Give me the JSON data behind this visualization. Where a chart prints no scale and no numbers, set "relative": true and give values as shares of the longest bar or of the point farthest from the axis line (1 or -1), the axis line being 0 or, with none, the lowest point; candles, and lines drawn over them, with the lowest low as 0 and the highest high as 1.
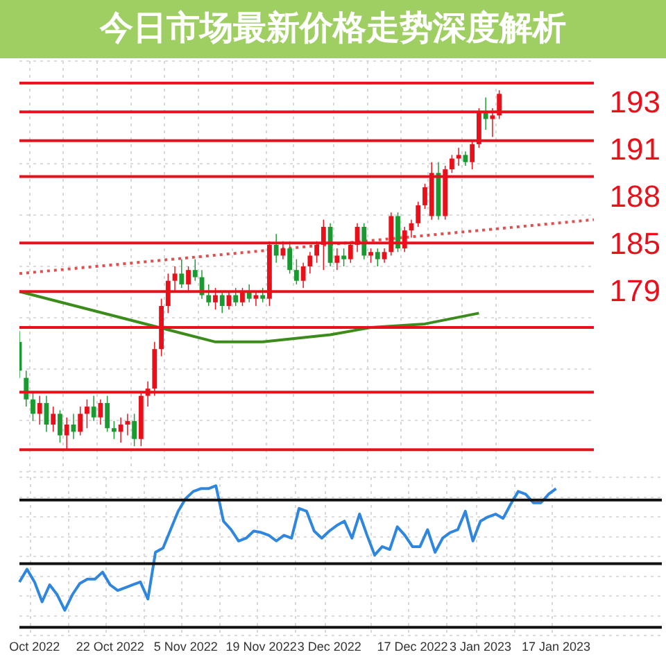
{
  "chart_data": [
    {
      "type": "candlestick",
      "title": "今日市场最新价格走势深度解析",
      "relative": true,
      "grid": true,
      "tick_labels": false,
      "categories": [
        null,
        null,
        null,
        null,
        null,
        null,
        null,
        null,
        null,
        null,
        null,
        null,
        null,
        null,
        null,
        null,
        null,
        null,
        null,
        null,
        null,
        null,
        null,
        null,
        null,
        null,
        null,
        null,
        null,
        null,
        null,
        null,
        null,
        null,
        null,
        null,
        null,
        null,
        null,
        null,
        null,
        null,
        null,
        null,
        null,
        null,
        null,
        null,
        null,
        null,
        null,
        null,
        null,
        null,
        null,
        null,
        null,
        null,
        null,
        null,
        null,
        null,
        null,
        null,
        null,
        null,
        null,
        null,
        null,
        null,
        null,
        null,
        null,
        null,
        null,
        null,
        null,
        null,
        null,
        null,
        null,
        null,
        null,
        null,
        null,
        null
      ],
      "ohlc": [
        [
          0.3,
          0.33,
          0.2,
          0.22
        ],
        [
          0.2,
          0.22,
          0.12,
          0.14
        ],
        [
          0.14,
          0.16,
          0.08,
          0.1
        ],
        [
          0.1,
          0.15,
          0.07,
          0.13
        ],
        [
          0.13,
          0.15,
          0.05,
          0.07
        ],
        [
          0.07,
          0.12,
          0.05,
          0.1
        ],
        [
          0.1,
          0.11,
          0.02,
          0.04
        ],
        [
          0.04,
          0.09,
          0.0,
          0.07
        ],
        [
          0.07,
          0.1,
          0.03,
          0.05
        ],
        [
          0.05,
          0.12,
          0.04,
          0.1
        ],
        [
          0.1,
          0.14,
          0.06,
          0.12
        ],
        [
          0.12,
          0.15,
          0.08,
          0.09
        ],
        [
          0.09,
          0.14,
          0.07,
          0.13
        ],
        [
          0.13,
          0.15,
          0.05,
          0.06
        ],
        [
          0.06,
          0.08,
          0.03,
          0.05
        ],
        [
          0.05,
          0.09,
          0.02,
          0.07
        ],
        [
          0.07,
          0.1,
          0.04,
          0.08
        ],
        [
          0.08,
          0.1,
          0.01,
          0.03
        ],
        [
          0.03,
          0.16,
          0.01,
          0.15
        ],
        [
          0.15,
          0.19,
          0.12,
          0.17
        ],
        [
          0.17,
          0.3,
          0.15,
          0.28
        ],
        [
          0.28,
          0.42,
          0.26,
          0.4
        ],
        [
          0.4,
          0.49,
          0.38,
          0.47
        ],
        [
          0.47,
          0.51,
          0.44,
          0.49
        ],
        [
          0.49,
          0.53,
          0.45,
          0.46
        ],
        [
          0.46,
          0.51,
          0.44,
          0.5
        ],
        [
          0.5,
          0.53,
          0.47,
          0.48
        ],
        [
          0.48,
          0.5,
          0.42,
          0.43
        ],
        [
          0.43,
          0.46,
          0.4,
          0.41
        ],
        [
          0.41,
          0.45,
          0.39,
          0.43
        ],
        [
          0.43,
          0.44,
          0.38,
          0.4
        ],
        [
          0.4,
          0.44,
          0.39,
          0.43
        ],
        [
          0.43,
          0.45,
          0.4,
          0.41
        ],
        [
          0.41,
          0.45,
          0.4,
          0.44
        ],
        [
          0.44,
          0.46,
          0.41,
          0.42
        ],
        [
          0.42,
          0.44,
          0.4,
          0.43
        ],
        [
          0.43,
          0.45,
          0.41,
          0.42
        ],
        [
          0.42,
          0.58,
          0.4,
          0.57
        ],
        [
          0.57,
          0.6,
          0.52,
          0.54
        ],
        [
          0.54,
          0.58,
          0.53,
          0.56
        ],
        [
          0.56,
          0.58,
          0.49,
          0.5
        ],
        [
          0.5,
          0.53,
          0.46,
          0.47
        ],
        [
          0.47,
          0.52,
          0.45,
          0.51
        ],
        [
          0.51,
          0.55,
          0.49,
          0.54
        ],
        [
          0.54,
          0.58,
          0.52,
          0.57
        ],
        [
          0.57,
          0.64,
          0.5,
          0.62
        ],
        [
          0.62,
          0.63,
          0.51,
          0.52
        ],
        [
          0.52,
          0.56,
          0.5,
          0.54
        ],
        [
          0.54,
          0.56,
          0.51,
          0.53
        ],
        [
          0.53,
          0.58,
          0.52,
          0.57
        ],
        [
          0.57,
          0.63,
          0.55,
          0.62
        ],
        [
          0.62,
          0.63,
          0.53,
          0.54
        ],
        [
          0.54,
          0.56,
          0.52,
          0.55
        ],
        [
          0.55,
          0.56,
          0.51,
          0.53
        ],
        [
          0.53,
          0.56,
          0.52,
          0.55
        ],
        [
          0.55,
          0.66,
          0.54,
          0.65
        ],
        [
          0.65,
          0.66,
          0.55,
          0.56
        ],
        [
          0.56,
          0.62,
          0.55,
          0.61
        ],
        [
          0.61,
          0.64,
          0.59,
          0.63
        ],
        [
          0.63,
          0.69,
          0.62,
          0.68
        ],
        [
          0.68,
          0.74,
          0.67,
          0.73
        ],
        [
          0.65,
          0.8,
          0.64,
          0.77
        ],
        [
          0.77,
          0.8,
          0.64,
          0.65
        ],
        [
          0.65,
          0.79,
          0.64,
          0.78
        ],
        [
          0.78,
          0.82,
          0.77,
          0.81
        ],
        [
          0.81,
          0.84,
          0.79,
          0.82
        ],
        [
          0.82,
          0.83,
          0.79,
          0.8
        ],
        [
          0.8,
          0.86,
          0.78,
          0.85
        ],
        [
          0.85,
          0.95,
          0.84,
          0.94
        ],
        [
          0.94,
          0.98,
          0.89,
          0.92
        ],
        [
          0.92,
          0.95,
          0.87,
          0.93
        ],
        [
          0.93,
          1.0,
          0.92,
          0.99
        ],
        null,
        null,
        null,
        null,
        null,
        null,
        null,
        null,
        null,
        null,
        null,
        null,
        null,
        null
      ],
      "colors": [
        "#1a9a30",
        "#1a9a30",
        "#1a9a30",
        "#e8101a",
        "#1a9a30",
        "#e8101a",
        "#1a9a30",
        "#e8101a",
        "#1a9a30",
        "#e8101a",
        "#e8101a",
        "#1a9a30",
        "#e8101a",
        "#1a9a30",
        "#1a9a30",
        "#e8101a",
        "#e8101a",
        "#1a9a30",
        "#e8101a",
        "#e8101a",
        "#e8101a",
        "#e8101a",
        "#e8101a",
        "#e8101a",
        "#1a9a30",
        "#e8101a",
        "#1a9a30",
        "#1a9a30",
        "#1a9a30",
        "#e8101a",
        "#1a9a30",
        "#e8101a",
        "#1a9a30",
        "#e8101a",
        "#1a9a30",
        "#e8101a",
        "#1a9a30",
        "#e8101a",
        "#1a9a30",
        "#e8101a",
        "#1a9a30",
        "#1a9a30",
        "#e8101a",
        "#e8101a",
        "#e8101a",
        "#e8101a",
        "#1a9a30",
        "#e8101a",
        "#1a9a30",
        "#e8101a",
        "#e8101a",
        "#1a9a30",
        "#e8101a",
        "#1a9a30",
        "#e8101a",
        "#e8101a",
        "#1a9a30",
        "#e8101a",
        "#e8101a",
        "#e8101a",
        "#e8101a",
        "#e8101a",
        "#1a9a30",
        "#e8101a",
        "#e8101a",
        "#e8101a",
        "#1a9a30",
        "#e8101a",
        "#e8101a",
        "#1a9a30",
        "#e8101a",
        "#e8101a",
        null,
        null,
        null,
        null,
        null,
        null,
        null,
        null,
        null,
        null,
        null,
        null,
        null,
        null
      ],
      "series": [
        {
          "type": "line",
          "color": "#3c8c1c",
          "marker": "none",
          "line_style": "solid",
          "values": [
            0.44,
            null,
            null,
            null,
            null,
            null,
            null,
            null,
            null,
            null,
            null,
            null,
            null,
            null,
            null,
            null,
            null,
            null,
            null,
            null,
            null,
            null,
            null,
            null,
            null,
            null,
            null,
            null,
            null,
            0.3,
            null,
            null,
            null,
            null,
            null,
            null,
            0.3,
            null,
            null,
            null,
            null,
            null,
            null,
            null,
            null,
            null,
            0.32,
            null,
            null,
            null,
            null,
            null,
            0.34,
            null,
            null,
            null,
            null,
            null,
            null,
            null,
            0.35,
            null,
            null,
            null,
            null,
            null,
            null,
            null,
            0.38,
            null,
            null,
            null,
            null,
            null,
            null,
            null,
            null,
            null,
            null,
            null,
            null,
            null,
            null,
            null,
            null,
            null
          ]
        },
        {
          "type": "line",
          "color": "#e05050",
          "marker": "none",
          "line_style": "dotted",
          "values": [
            0.49,
            null,
            null,
            null,
            null,
            null,
            null,
            null,
            null,
            null,
            null,
            null,
            null,
            null,
            null,
            null,
            null,
            null,
            null,
            null,
            null,
            null,
            null,
            null,
            null,
            null,
            null,
            null,
            null,
            null,
            null,
            null,
            null,
            null,
            null,
            null,
            null,
            null,
            null,
            null,
            null,
            null,
            null,
            null,
            null,
            null,
            null,
            null,
            null,
            null,
            null,
            null,
            null,
            null,
            null,
            null,
            null,
            null,
            null,
            null,
            null,
            null,
            null,
            null,
            null,
            null,
            null,
            null,
            null,
            null,
            null,
            null,
            null,
            null,
            null,
            null,
            null,
            null,
            null,
            null,
            null,
            null,
            null,
            null,
            null,
            0.64
          ]
        }
      ],
      "ref_lines": [
        {
          "axis": "y",
          "value": 1.02,
          "color": "#e8101a"
        },
        {
          "axis": "y",
          "value": 0.94,
          "color": "#e8101a"
        },
        {
          "axis": "y",
          "value": 0.86,
          "color": "#e8101a"
        },
        {
          "axis": "y",
          "value": 0.76,
          "color": "#e8101a"
        },
        {
          "axis": "y",
          "value": 0.575,
          "color": "#e8101a"
        },
        {
          "axis": "y",
          "value": 0.44,
          "color": "#e8101a"
        },
        {
          "axis": "y",
          "value": 0.34,
          "color": "#e8101a"
        },
        {
          "axis": "y",
          "value": 0.16,
          "color": "#e8101a"
        },
        {
          "axis": "y",
          "value": 0.0,
          "color": "#e8101a"
        }
      ],
      "annotations": [
        "193",
        "191",
        "188",
        "185",
        "179"
      ]
    },
    {
      "type": "line",
      "relative": true,
      "grid": true,
      "tick_labels": "x",
      "marker": "none",
      "line_style": "solid",
      "categories": [
        null,
        null,
        "Oct 2022",
        null,
        null,
        null,
        null,
        null,
        null,
        null,
        null,
        null,
        "22 Oct 2022",
        null,
        null,
        null,
        null,
        null,
        null,
        null,
        null,
        null,
        "5 Nov 2022",
        null,
        null,
        null,
        null,
        null,
        null,
        null,
        null,
        null,
        "19 Nov 2022",
        null,
        null,
        null,
        null,
        null,
        null,
        null,
        null,
        "3 Dec 2022",
        null,
        null,
        null,
        null,
        null,
        null,
        null,
        null,
        null,
        null,
        "17 Dec 2022",
        null,
        null,
        null,
        null,
        null,
        null,
        null,
        null,
        "3 Jan 2023",
        null,
        null,
        null,
        null,
        null,
        null,
        null,
        null,
        null,
        "17 Jan 2023",
        null,
        null,
        null,
        null,
        null,
        null,
        null,
        null,
        null,
        null,
        null,
        null,
        null,
        null
      ],
      "series": [
        {
          "color": "#2e86de",
          "values": [
            0.32,
            0.41,
            0.32,
            0.18,
            0.3,
            0.23,
            0.12,
            0.23,
            0.31,
            0.34,
            0.34,
            0.39,
            0.3,
            0.26,
            0.28,
            0.3,
            0.32,
            0.2,
            0.53,
            0.56,
            0.69,
            0.82,
            0.91,
            0.96,
            0.98,
            0.98,
            1.0,
            0.75,
            0.69,
            0.61,
            0.63,
            0.68,
            0.67,
            0.65,
            0.61,
            0.65,
            0.63,
            0.84,
            0.82,
            0.68,
            0.63,
            0.68,
            0.72,
            0.75,
            0.63,
            0.8,
            0.65,
            0.51,
            0.57,
            0.55,
            0.71,
            0.65,
            0.57,
            0.57,
            0.69,
            0.53,
            0.63,
            0.67,
            0.69,
            0.82,
            0.61,
            0.75,
            0.78,
            0.8,
            0.77,
            0.87,
            0.96,
            0.94,
            0.88,
            0.88,
            0.94,
            0.98,
            null,
            null,
            null,
            null,
            null,
            null,
            null,
            null,
            null,
            null,
            null,
            null,
            null,
            null
          ]
        }
      ],
      "ref_lines": [
        {
          "axis": "y",
          "value": 0.9,
          "color": "#111111"
        },
        {
          "axis": "y",
          "value": 0.45,
          "color": "#111111"
        }
      ]
    }
  ]
}
